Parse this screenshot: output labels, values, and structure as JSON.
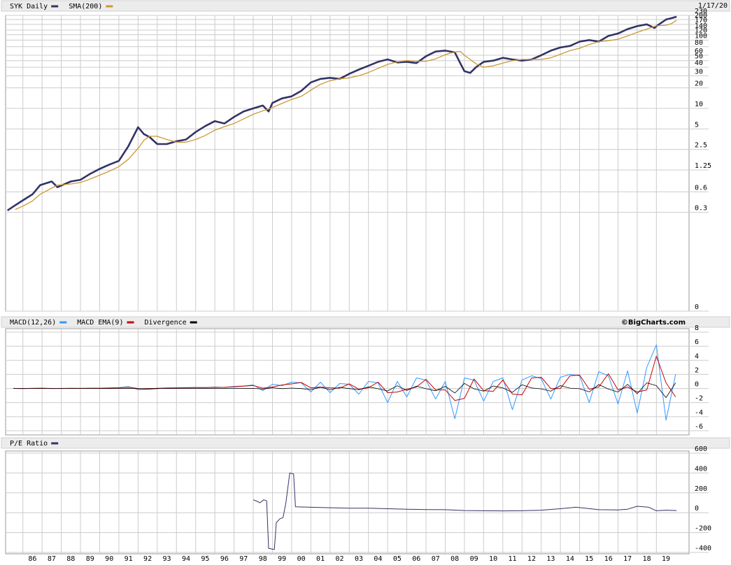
{
  "chart_data": [
    {
      "type": "line",
      "log_scale": true,
      "date": "1/17/20",
      "grid": true,
      "xlim": [
        1985.1,
        2020.7
      ],
      "ylim": [
        0.0107,
        230
      ],
      "yticks": [
        230,
        200,
        170,
        140,
        120,
        100,
        80,
        60,
        50,
        40,
        30,
        20,
        10,
        5,
        2.5,
        1.25,
        0.6,
        0.3,
        {
          "value": 0.0107,
          "label": "0"
        }
      ],
      "x": [
        1985.2,
        1985.6,
        1986.0,
        1986.5,
        1986.9,
        1987.5,
        1987.8,
        1988.5,
        1989.0,
        1989.5,
        1990.0,
        1990.5,
        1991.0,
        1991.5,
        1992.0,
        1992.3,
        1992.6,
        1993.0,
        1993.5,
        1994.0,
        1994.5,
        1995.0,
        1995.5,
        1996.0,
        1996.5,
        1997.0,
        1997.5,
        1998.0,
        1998.5,
        1998.8,
        1999.0,
        1999.5,
        2000.0,
        2000.5,
        2001.0,
        2001.5,
        2002.0,
        2002.5,
        2003.0,
        2003.5,
        2004.0,
        2004.5,
        2005.0,
        2005.5,
        2006.0,
        2006.5,
        2007.0,
        2007.5,
        2008.0,
        2008.5,
        2008.8,
        2009.0,
        2009.3,
        2009.6,
        2010.0,
        2010.5,
        2011.0,
        2011.5,
        2012.0,
        2012.5,
        2013.0,
        2013.5,
        2014.0,
        2014.5,
        2015.0,
        2015.5,
        2016.0,
        2016.5,
        2017.0,
        2017.5,
        2018.0,
        2018.5,
        2018.9,
        2019.0,
        2019.5,
        2019.8,
        2020.05
      ],
      "series": [
        {
          "name": "SYK Daily",
          "color": "#333366",
          "values": [
            0.32,
            0.38,
            0.45,
            0.55,
            0.75,
            0.85,
            0.7,
            0.85,
            0.9,
            1.1,
            1.3,
            1.5,
            1.7,
            2.8,
            5.3,
            4.2,
            3.8,
            3.0,
            3.0,
            3.3,
            3.5,
            4.5,
            5.5,
            6.5,
            6.0,
            7.5,
            9,
            10,
            11,
            9,
            12,
            14,
            15,
            18,
            24,
            27,
            28,
            27,
            32,
            37,
            42,
            48,
            52,
            47,
            48,
            46,
            58,
            68,
            70,
            66,
            45,
            35,
            33,
            40,
            48,
            50,
            55,
            52,
            50,
            52,
            60,
            70,
            78,
            82,
            95,
            100,
            95,
            115,
            125,
            145,
            160,
            170,
            150,
            160,
            200,
            210,
            220
          ]
        },
        {
          "name": "SMA(200)",
          "color": "#cc9933",
          "values": [
            null,
            0.33,
            0.37,
            0.44,
            0.55,
            0.68,
            0.75,
            0.78,
            0.82,
            0.92,
            1.05,
            1.2,
            1.4,
            1.8,
            2.6,
            3.4,
            3.9,
            3.9,
            3.5,
            3.2,
            3.2,
            3.5,
            4.0,
            4.8,
            5.4,
            6.0,
            7.0,
            8.2,
            9.2,
            9.8,
            10.3,
            11.8,
            13.5,
            15.0,
            18.5,
            22.5,
            25.5,
            27,
            28,
            30,
            33.5,
            38.5,
            44,
            48,
            50,
            49,
            49,
            53,
            61,
            67,
            68,
            60,
            52,
            45,
            40,
            42,
            46,
            50,
            52,
            52,
            52,
            55,
            62,
            70,
            76,
            86,
            95,
            98,
            103,
            115,
            130,
            145,
            158,
            162,
            165,
            175,
            195
          ]
        }
      ]
    },
    {
      "type": "line",
      "source": "©BigCharts.com",
      "grid": true,
      "xlim": [
        1985.1,
        2020.7
      ],
      "ylim": [
        -6.6,
        8.5
      ],
      "yticks": [
        8,
        6,
        4,
        2,
        0,
        -2,
        -4,
        -6
      ],
      "x": [
        1985.5,
        1986.0,
        1986.5,
        1987.0,
        1987.5,
        1988.0,
        1988.5,
        1989.0,
        1989.5,
        1990.0,
        1990.5,
        1991.0,
        1991.5,
        1992.0,
        1992.5,
        1993.0,
        1993.5,
        1994.0,
        1994.5,
        1995.0,
        1995.5,
        1996.0,
        1996.5,
        1997.0,
        1997.5,
        1998.0,
        1998.5,
        1999.0,
        1999.5,
        2000.0,
        2000.5,
        2001.0,
        2001.5,
        2002.0,
        2002.5,
        2003.0,
        2003.5,
        2004.0,
        2004.5,
        2005.0,
        2005.5,
        2006.0,
        2006.5,
        2007.0,
        2007.5,
        2008.0,
        2008.5,
        2009.0,
        2009.5,
        2010.0,
        2010.5,
        2011.0,
        2011.5,
        2012.0,
        2012.5,
        2013.0,
        2013.5,
        2014.0,
        2014.5,
        2015.0,
        2015.5,
        2016.0,
        2016.5,
        2017.0,
        2017.5,
        2018.0,
        2018.5,
        2019.0,
        2019.5,
        2020.0
      ],
      "series": [
        {
          "name": "MACD(12,26)",
          "color": "#3399ff",
          "values": [
            0.02,
            -0.01,
            0.03,
            0.05,
            -0.02,
            0.02,
            0.03,
            0.01,
            0.04,
            0.05,
            0.08,
            0.12,
            0.25,
            -0.15,
            -0.1,
            0.05,
            0.08,
            0.1,
            0.12,
            0.15,
            0.12,
            0.2,
            0.15,
            0.3,
            0.35,
            0.5,
            -0.3,
            0.6,
            0.4,
            0.9,
            0.8,
            -0.5,
            0.9,
            -0.6,
            0.7,
            0.6,
            -0.8,
            1.0,
            0.8,
            -2.0,
            1.0,
            -1.2,
            1.5,
            1.2,
            -1.5,
            1.0,
            -4.3,
            1.5,
            1.2,
            -1.8,
            1.0,
            1.5,
            -3.0,
            1.2,
            1.8,
            1.4,
            -1.5,
            1.6,
            2.0,
            1.8,
            -2.0,
            2.4,
            1.8,
            -2.2,
            2.5,
            -3.5,
            3.0,
            6.2,
            -4.5,
            2.0
          ]
        },
        {
          "name": "MACD EMA(9)",
          "color": "#cc0000",
          "values": [
            0.01,
            0.0,
            0.01,
            0.04,
            0.01,
            0.0,
            0.02,
            0.02,
            0.03,
            0.04,
            0.06,
            0.1,
            0.18,
            0.0,
            -0.12,
            -0.02,
            0.06,
            0.09,
            0.11,
            0.13,
            0.13,
            0.16,
            0.17,
            0.22,
            0.32,
            0.42,
            0.05,
            0.2,
            0.5,
            0.65,
            0.85,
            0.1,
            0.2,
            0.1,
            0.05,
            0.65,
            -0.1,
            0.1,
            0.9,
            -0.6,
            -0.5,
            -0.1,
            0.2,
            1.3,
            -0.2,
            -0.2,
            -1.7,
            -1.4,
            1.35,
            -0.3,
            -0.4,
            1.2,
            -0.8,
            -0.9,
            1.5,
            1.6,
            0.0,
            0.0,
            1.8,
            1.9,
            -0.1,
            0.2,
            2.1,
            -0.2,
            0.2,
            -0.5,
            -0.2,
            4.6,
            0.8,
            -1.2
          ]
        },
        {
          "name": "Divergence",
          "color": "#000000",
          "values": [
            0,
            0,
            0,
            0,
            0,
            0,
            0,
            0,
            0,
            0,
            0,
            0,
            0.02,
            -0.03,
            0,
            0.02,
            0,
            0,
            0,
            0,
            0,
            0.01,
            0,
            0.02,
            0.01,
            0.02,
            -0.08,
            0.1,
            -0.02,
            0.06,
            -0.01,
            -0.15,
            0.18,
            -0.18,
            0.16,
            -0.01,
            -0.18,
            0.22,
            -0.03,
            -0.35,
            0.38,
            -0.28,
            0.32,
            -0.03,
            -0.32,
            0.3,
            -0.65,
            0.72,
            -0.04,
            -0.38,
            0.35,
            0.08,
            -0.55,
            0.52,
            0.08,
            -0.05,
            -0.38,
            0.4,
            0.05,
            -0.03,
            -0.48,
            0.55,
            -0.08,
            -0.5,
            0.58,
            -0.75,
            0.8,
            0.4,
            -1.3,
            0.8
          ]
        }
      ]
    },
    {
      "type": "line",
      "grid": true,
      "xlim": [
        1985.1,
        2020.7
      ],
      "ylim": [
        -414,
        621
      ],
      "yticks": [
        600,
        400,
        200,
        0,
        -200,
        -400
      ],
      "xticks": [
        {
          "value": 1986,
          "label": "86"
        },
        {
          "value": 1987,
          "label": "87"
        },
        {
          "value": 1988,
          "label": "88"
        },
        {
          "value": 1989,
          "label": "89"
        },
        {
          "value": 1990,
          "label": "90"
        },
        {
          "value": 1991,
          "label": "91"
        },
        {
          "value": 1992,
          "label": "92"
        },
        {
          "value": 1993,
          "label": "93"
        },
        {
          "value": 1994,
          "label": "94"
        },
        {
          "value": 1995,
          "label": "95"
        },
        {
          "value": 1996,
          "label": "96"
        },
        {
          "value": 1997,
          "label": "97"
        },
        {
          "value": 1998,
          "label": "98"
        },
        {
          "value": 1999,
          "label": "99"
        },
        {
          "value": 2000,
          "label": "00"
        },
        {
          "value": 2001,
          "label": "01"
        },
        {
          "value": 2002,
          "label": "02"
        },
        {
          "value": 2003,
          "label": "03"
        },
        {
          "value": 2004,
          "label": "04"
        },
        {
          "value": 2005,
          "label": "05"
        },
        {
          "value": 2006,
          "label": "06"
        },
        {
          "value": 2007,
          "label": "07"
        },
        {
          "value": 2008,
          "label": "08"
        },
        {
          "value": 2009,
          "label": "09"
        },
        {
          "value": 2010,
          "label": "10"
        },
        {
          "value": 2011,
          "label": "11"
        },
        {
          "value": 2012,
          "label": "12"
        },
        {
          "value": 2013,
          "label": "13"
        },
        {
          "value": 2014,
          "label": "14"
        },
        {
          "value": 2015,
          "label": "15"
        },
        {
          "value": 2016,
          "label": "16"
        },
        {
          "value": 2017,
          "label": "17"
        },
        {
          "value": 2018,
          "label": "18"
        },
        {
          "value": 2019,
          "label": "19"
        }
      ],
      "x": [
        1998.0,
        1998.2,
        1998.35,
        1998.55,
        1998.7,
        1998.8,
        1999.1,
        1999.2,
        1999.4,
        1999.55,
        1999.7,
        1999.9,
        2000.1,
        2000.2,
        2001,
        2002,
        2003,
        2004,
        2005,
        2006,
        2007,
        2008,
        2009,
        2010,
        2011,
        2012,
        2013,
        2014,
        2014.8,
        2015.3,
        2016,
        2017,
        2017.5,
        2018,
        2018.6,
        2019,
        2019.5,
        2020.05
      ],
      "series": [
        {
          "name": "P/E Ratio",
          "color": "#333366",
          "values": [
            130,
            115,
            100,
            130,
            120,
            -360,
            -370,
            -100,
            -60,
            -50,
            100,
            400,
            390,
            60,
            55,
            50,
            45,
            45,
            40,
            35,
            32,
            30,
            22,
            20,
            18,
            20,
            25,
            40,
            55,
            45,
            30,
            28,
            35,
            65,
            55,
            20,
            25,
            22
          ]
        }
      ]
    }
  ]
}
